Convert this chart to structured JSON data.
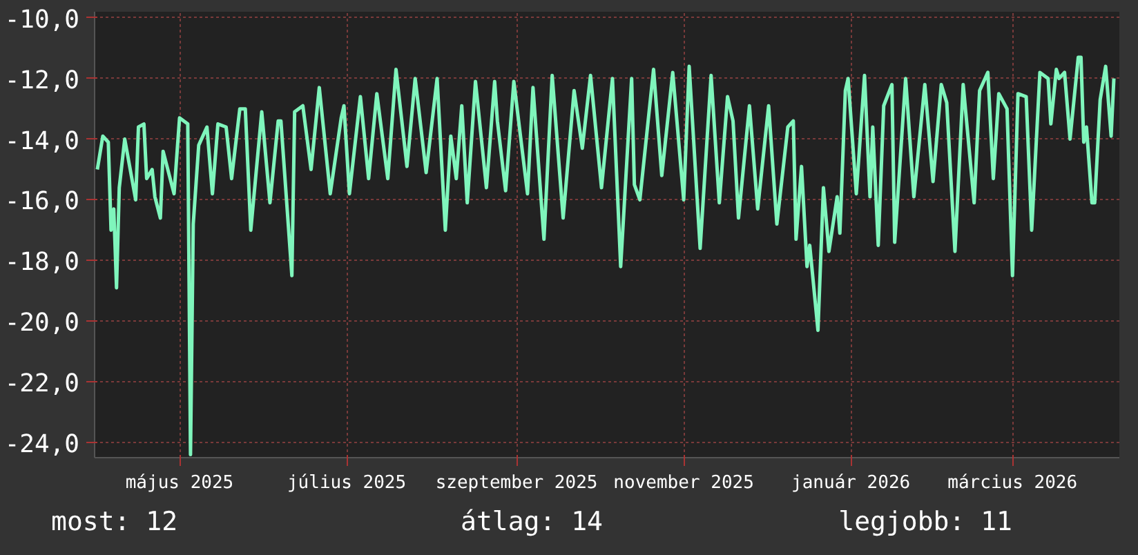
{
  "chart_data": {
    "type": "line",
    "x": [
      "2025-04-01",
      "2025-04-03",
      "2025-04-05",
      "2025-04-06",
      "2025-04-07",
      "2025-04-08",
      "2025-04-09",
      "2025-04-11",
      "2025-04-15",
      "2025-04-16",
      "2025-04-18",
      "2025-04-19",
      "2025-04-21",
      "2025-04-22",
      "2025-04-24",
      "2025-04-25",
      "2025-04-29",
      "2025-05-01",
      "2025-05-04",
      "2025-05-05",
      "2025-05-06",
      "2025-05-08",
      "2025-05-11",
      "2025-05-13",
      "2025-05-15",
      "2025-05-18",
      "2025-05-20",
      "2025-05-23",
      "2025-05-25",
      "2025-05-27",
      "2025-05-31",
      "2025-06-03",
      "2025-06-06",
      "2025-06-07",
      "2025-06-11",
      "2025-06-12",
      "2025-06-15",
      "2025-06-18",
      "2025-06-21",
      "2025-06-25",
      "2025-06-29",
      "2025-06-30",
      "2025-07-02",
      "2025-07-06",
      "2025-07-09",
      "2025-07-12",
      "2025-07-16",
      "2025-07-19",
      "2025-07-23",
      "2025-07-26",
      "2025-07-30",
      "2025-08-03",
      "2025-08-06",
      "2025-08-08",
      "2025-08-10",
      "2025-08-12",
      "2025-08-14",
      "2025-08-17",
      "2025-08-21",
      "2025-08-24",
      "2025-08-25",
      "2025-08-28",
      "2025-08-31",
      "2025-09-05",
      "2025-09-07",
      "2025-09-11",
      "2025-09-14",
      "2025-09-18",
      "2025-09-22",
      "2025-09-25",
      "2025-09-28",
      "2025-10-02",
      "2025-10-06",
      "2025-10-09",
      "2025-10-13",
      "2025-10-14",
      "2025-10-16",
      "2025-10-21",
      "2025-10-24",
      "2025-10-28",
      "2025-11-01",
      "2025-11-03",
      "2025-11-07",
      "2025-11-11",
      "2025-11-14",
      "2025-11-17",
      "2025-11-19",
      "2025-11-21",
      "2025-11-25",
      "2025-11-28",
      "2025-12-02",
      "2025-12-05",
      "2025-12-09",
      "2025-12-11",
      "2025-12-12",
      "2025-12-14",
      "2025-12-16",
      "2025-12-17",
      "2025-12-20",
      "2025-12-22",
      "2025-12-24",
      "2025-12-27",
      "2025-12-28",
      "2025-12-30",
      "2025-12-31",
      "2026-01-03",
      "2026-01-06",
      "2026-01-08",
      "2026-01-09",
      "2026-01-11",
      "2026-01-13",
      "2026-01-16",
      "2026-01-17",
      "2026-01-21",
      "2026-01-24",
      "2026-01-28",
      "2026-01-31",
      "2026-02-03",
      "2026-02-05",
      "2026-02-08",
      "2026-02-11",
      "2026-02-15",
      "2026-02-17",
      "2026-02-20",
      "2026-02-22",
      "2026-02-24",
      "2026-02-27",
      "2026-03-01",
      "2026-03-03",
      "2026-03-06",
      "2026-03-08",
      "2026-03-11",
      "2026-03-14",
      "2026-03-15",
      "2026-03-17",
      "2026-03-18",
      "2026-03-20",
      "2026-03-22",
      "2026-03-25",
      "2026-03-26",
      "2026-03-27",
      "2026-03-28",
      "2026-03-30",
      "2026-03-31",
      "2026-04-02",
      "2026-04-04",
      "2026-04-06",
      "2026-04-07"
    ],
    "series": [
      {
        "color": "#7ff5bc",
        "values": [
          -15.0,
          -13.9,
          -14.1,
          -17.0,
          -16.3,
          -18.9,
          -15.6,
          -14.0,
          -16.0,
          -13.6,
          -13.5,
          -15.3,
          -15.0,
          -15.9,
          -16.6,
          -14.4,
          -15.8,
          -13.3,
          -13.5,
          -24.4,
          -16.8,
          -14.2,
          -13.6,
          -15.8,
          -13.5,
          -13.6,
          -15.3,
          -13.0,
          -13.0,
          -17.0,
          -13.1,
          -16.1,
          -13.4,
          -13.4,
          -18.5,
          -13.1,
          -12.9,
          -15.0,
          -12.3,
          -15.8,
          -13.3,
          -12.9,
          -15.8,
          -12.6,
          -15.3,
          -12.5,
          -15.3,
          -11.7,
          -14.9,
          -12.0,
          -15.1,
          -12.0,
          -17.0,
          -13.9,
          -15.3,
          -12.9,
          -16.1,
          -12.1,
          -15.6,
          -12.1,
          -13.4,
          -15.7,
          -12.1,
          -15.8,
          -12.3,
          -17.3,
          -11.9,
          -16.6,
          -12.4,
          -14.3,
          -11.9,
          -15.6,
          -12.0,
          -18.2,
          -12.0,
          -15.5,
          -16.0,
          -11.7,
          -15.2,
          -11.8,
          -16.0,
          -11.6,
          -17.6,
          -11.9,
          -16.1,
          -12.6,
          -13.4,
          -16.6,
          -12.9,
          -16.3,
          -12.9,
          -16.8,
          -13.6,
          -13.4,
          -17.3,
          -14.9,
          -18.2,
          -17.5,
          -20.3,
          -15.6,
          -17.7,
          -15.9,
          -17.1,
          -12.4,
          -12.0,
          -15.8,
          -11.9,
          -15.9,
          -13.6,
          -17.5,
          -12.9,
          -12.2,
          -17.4,
          -12.0,
          -15.9,
          -12.2,
          -15.4,
          -12.2,
          -12.8,
          -17.7,
          -12.2,
          -16.1,
          -12.4,
          -11.8,
          -15.3,
          -12.5,
          -13.0,
          -18.5,
          -12.5,
          -12.6,
          -17.0,
          -11.8,
          -12.0,
          -13.5,
          -11.7,
          -12.0,
          -11.8,
          -14.0,
          -11.3,
          -11.3,
          -14.1,
          -13.6,
          -16.1,
          -16.1,
          -12.7,
          -11.6,
          -13.9,
          -12.0
        ]
      }
    ],
    "xlim": [
      "2025-03-31",
      "2026-04-09"
    ],
    "xticks": [
      {
        "value": "2025-05-01",
        "label": "május 2025"
      },
      {
        "value": "2025-07-01",
        "label": "július 2025"
      },
      {
        "value": "2025-09-01",
        "label": "szeptember 2025"
      },
      {
        "value": "2025-11-01",
        "label": "november 2025"
      },
      {
        "value": "2026-01-01",
        "label": "január 2026"
      },
      {
        "value": "2026-03-01",
        "label": "március 2026"
      }
    ],
    "ylim": [
      -24.5,
      -9.8
    ],
    "yticks": [
      {
        "value": -10,
        "label": "-10,0"
      },
      {
        "value": -12,
        "label": "-12,0"
      },
      {
        "value": -14,
        "label": "-14,0"
      },
      {
        "value": -16,
        "label": "-16,0"
      },
      {
        "value": -18,
        "label": "-18,0"
      },
      {
        "value": -20,
        "label": "-20,0"
      },
      {
        "value": -22,
        "label": "-22,0"
      },
      {
        "value": -24,
        "label": "-24,0"
      }
    ],
    "grid": true,
    "annotations": [
      "most: 12",
      "átlag: 14",
      "legjobb: 11"
    ]
  }
}
